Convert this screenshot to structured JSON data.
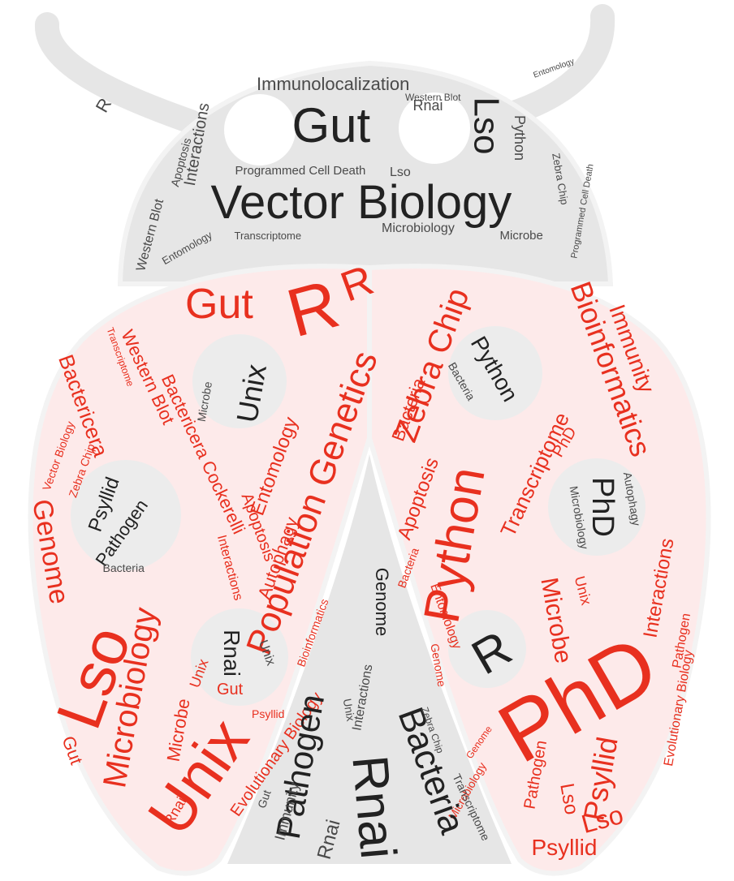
{
  "colors": {
    "red": "#e8301f",
    "black": "#222222",
    "gray": "#4a4a4a",
    "head_fill": "#e6e6e6",
    "shell_fill": "#fdeaea",
    "spot_fill": "#ececec",
    "outline": "#f3f3f3"
  },
  "head_words": [
    {
      "text": "Vector Biology",
      "color": "black"
    },
    {
      "text": "Gut",
      "color": "black"
    },
    {
      "text": "Lso",
      "color": "black"
    },
    {
      "text": "Immunolocalization",
      "color": "gray"
    },
    {
      "text": "Programmed Cell Death",
      "color": "gray"
    },
    {
      "text": "Interactions",
      "color": "gray"
    },
    {
      "text": "Western Blot",
      "color": "gray"
    },
    {
      "text": "Apoptosis",
      "color": "gray"
    },
    {
      "text": "Python",
      "color": "gray"
    },
    {
      "text": "Rnai",
      "color": "gray"
    },
    {
      "text": "Microbiology",
      "color": "gray"
    },
    {
      "text": "Entomology",
      "color": "gray"
    },
    {
      "text": "Microbe",
      "color": "gray"
    },
    {
      "text": "Zebra Chip",
      "color": "gray"
    },
    {
      "text": "Transcriptome",
      "color": "gray"
    },
    {
      "text": "Lso",
      "color": "gray"
    },
    {
      "text": "Programmed Cell Death",
      "color": "gray"
    },
    {
      "text": "R",
      "color": "gray"
    },
    {
      "text": "Western Blot",
      "color": "gray"
    },
    {
      "text": "Entomology",
      "color": "gray"
    }
  ],
  "shell_words": [
    {
      "text": "PhD",
      "color": "red"
    },
    {
      "text": "Unix",
      "color": "red"
    },
    {
      "text": "Lso",
      "color": "red"
    },
    {
      "text": "Python",
      "color": "red"
    },
    {
      "text": "R",
      "color": "red"
    },
    {
      "text": "R",
      "color": "red"
    },
    {
      "text": "Gut",
      "color": "red"
    },
    {
      "text": "Microbiology",
      "color": "red"
    },
    {
      "text": "Population Genetics",
      "color": "red"
    },
    {
      "text": "Bioinformatics",
      "color": "red"
    },
    {
      "text": "Zebra Chip",
      "color": "red"
    },
    {
      "text": "Psyllid",
      "color": "red"
    },
    {
      "text": "Genome",
      "color": "red"
    },
    {
      "text": "Immunity",
      "color": "red"
    },
    {
      "text": "Transcriptome",
      "color": "red"
    },
    {
      "text": "Bactericera Cockerelli",
      "color": "red"
    },
    {
      "text": "Western Blot",
      "color": "red"
    },
    {
      "text": "Entomology",
      "color": "red"
    },
    {
      "text": "Apoptosis",
      "color": "red"
    },
    {
      "text": "Autophagy",
      "color": "red"
    },
    {
      "text": "PhD",
      "color": "red"
    },
    {
      "text": "Microbe",
      "color": "red"
    },
    {
      "text": "Interactions",
      "color": "red"
    },
    {
      "text": "Lso",
      "color": "red"
    },
    {
      "text": "Bacteria",
      "color": "red"
    },
    {
      "text": "Pathogen",
      "color": "red"
    },
    {
      "text": "Evolutionary Biology",
      "color": "red"
    },
    {
      "text": "Unix",
      "color": "red"
    },
    {
      "text": "Genome",
      "color": "red"
    },
    {
      "text": "Gut",
      "color": "red"
    },
    {
      "text": "Microbe",
      "color": "red"
    },
    {
      "text": "Vector Biology",
      "color": "red"
    },
    {
      "text": "Zebra Chip",
      "color": "red"
    },
    {
      "text": "Bactericera",
      "color": "red"
    },
    {
      "text": "Rnai",
      "color": "red"
    },
    {
      "text": "Transcriptome",
      "color": "red"
    },
    {
      "text": "Psyllid",
      "color": "red"
    },
    {
      "text": "Genome",
      "color": "red"
    },
    {
      "text": "Bioinformatics",
      "color": "red"
    },
    {
      "text": "Apoptosis",
      "color": "red"
    },
    {
      "text": "Interactions",
      "color": "red"
    },
    {
      "text": "Pathogen",
      "color": "red"
    },
    {
      "text": "Lso",
      "color": "red"
    },
    {
      "text": "Psyllid",
      "color": "red"
    },
    {
      "text": "Gut",
      "color": "red"
    },
    {
      "text": "Entomology",
      "color": "red"
    },
    {
      "text": "Bacteria",
      "color": "red"
    },
    {
      "text": "Microbiology",
      "color": "red"
    },
    {
      "text": "Unix",
      "color": "red"
    },
    {
      "text": "Evolutionary Biology",
      "color": "red"
    }
  ],
  "spot_words": [
    {
      "text": "Unix",
      "color": "black"
    },
    {
      "text": "Microbe",
      "color": "gray"
    },
    {
      "text": "Python",
      "color": "black"
    },
    {
      "text": "Bacteria",
      "color": "gray"
    },
    {
      "text": "Psyllid",
      "color": "black"
    },
    {
      "text": "Pathogen",
      "color": "black"
    },
    {
      "text": "Bacteria",
      "color": "gray"
    },
    {
      "text": "PhD",
      "color": "black"
    },
    {
      "text": "Autophagy",
      "color": "gray"
    },
    {
      "text": "Microbiology",
      "color": "gray"
    },
    {
      "text": "Rnai",
      "color": "black"
    },
    {
      "text": "Unix",
      "color": "gray"
    },
    {
      "text": "R",
      "color": "black"
    }
  ],
  "wedge_words": [
    {
      "text": "Bacteria",
      "color": "black"
    },
    {
      "text": "Rnai",
      "color": "black"
    },
    {
      "text": "Pathogen",
      "color": "black"
    },
    {
      "text": "Genome",
      "color": "black"
    },
    {
      "text": "Interactions",
      "color": "gray"
    },
    {
      "text": "Immunity",
      "color": "gray"
    },
    {
      "text": "Rnai",
      "color": "gray"
    },
    {
      "text": "Transcriptome",
      "color": "gray"
    },
    {
      "text": "Zebra Chip",
      "color": "gray"
    },
    {
      "text": "Gut",
      "color": "gray"
    },
    {
      "text": "Unix",
      "color": "gray"
    }
  ]
}
